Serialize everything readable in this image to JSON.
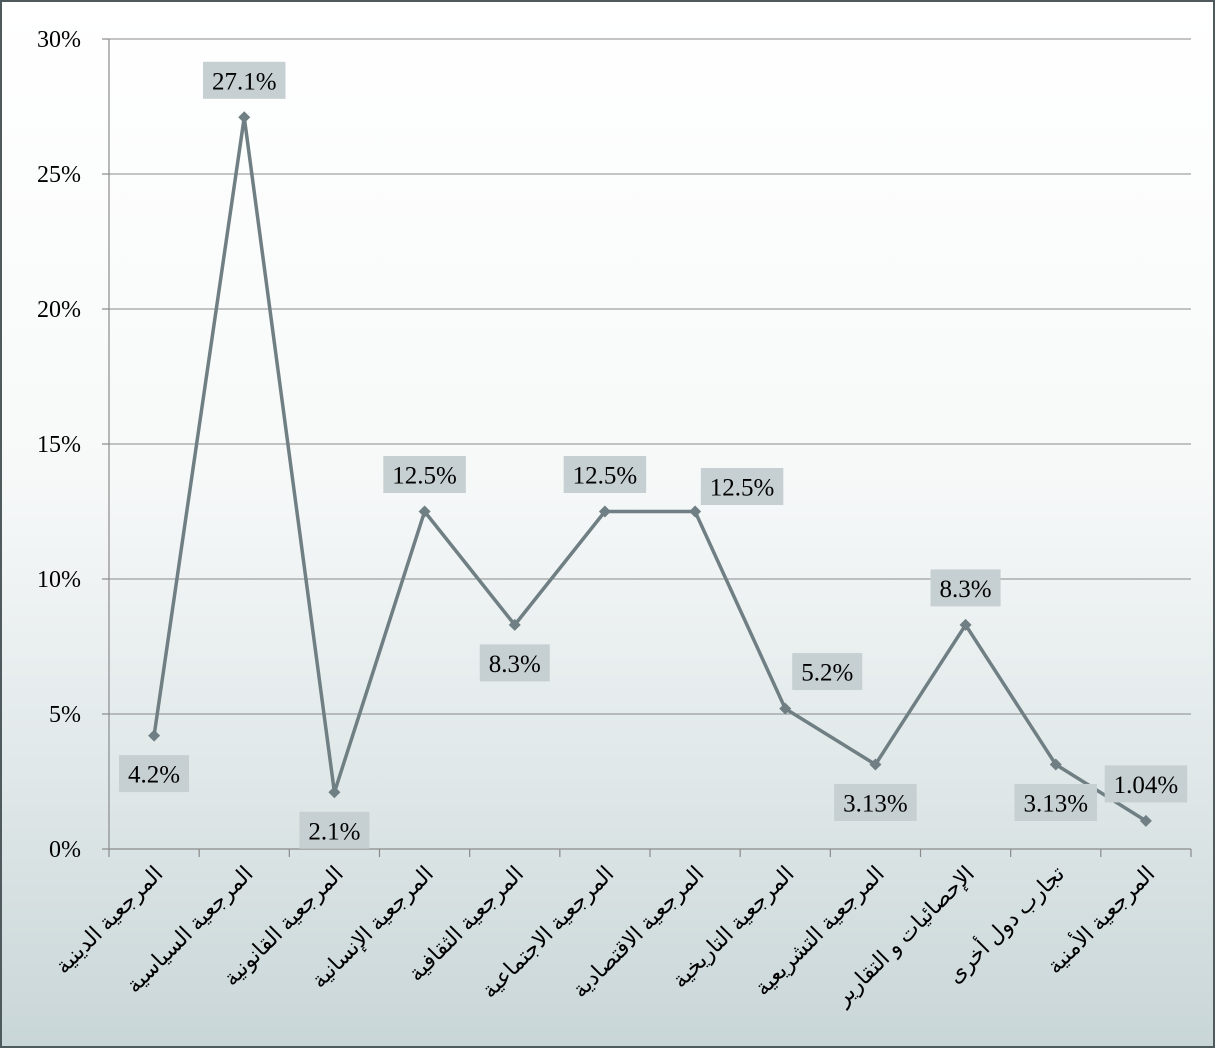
{
  "chart_data": {
    "type": "line",
    "title": "",
    "xlabel": "",
    "ylabel": "",
    "categories": [
      "المرجعية الدينية",
      "المرجعية السياسية",
      "المرجعية القانونية",
      "المرجعية الإنسانية",
      "المرجعية الثقافية",
      "المرجعية الاجتماعية",
      "المرجعية الاقتصادية",
      "المرجعية التاريخية",
      "المرجعية التشريعية",
      "الإحصائيات و التقارير",
      "تجارب دول أخرى",
      "المرجعية الأمنية"
    ],
    "values": [
      4.2,
      27.1,
      2.1,
      12.5,
      8.3,
      12.5,
      12.5,
      5.2,
      3.13,
      8.3,
      3.13,
      1.04
    ],
    "data_labels": [
      "4.2%",
      "27.1%",
      "2.1%",
      "12.5%",
      "8.3%",
      "12.5%",
      "12.5%",
      "5.2%",
      "3.13%",
      "8.3%",
      "3.13%",
      "1.04%"
    ],
    "label_positions": [
      "below",
      "above",
      "below",
      "above",
      "below",
      "above",
      "right",
      "above-right",
      "below",
      "above",
      "below",
      "above"
    ],
    "ylim": [
      0,
      30
    ],
    "yticks": [
      0,
      5,
      10,
      15,
      20,
      25,
      30
    ],
    "ytick_labels": [
      "0%",
      "5%",
      "10%",
      "15%",
      "20%",
      "25%",
      "30%"
    ],
    "grid": true,
    "legend": "none",
    "colors": {
      "line": "#6f7f83",
      "marker": "#6f7f83",
      "label_background": "#c6cfd1",
      "gridline": "#8a8a8a"
    }
  }
}
